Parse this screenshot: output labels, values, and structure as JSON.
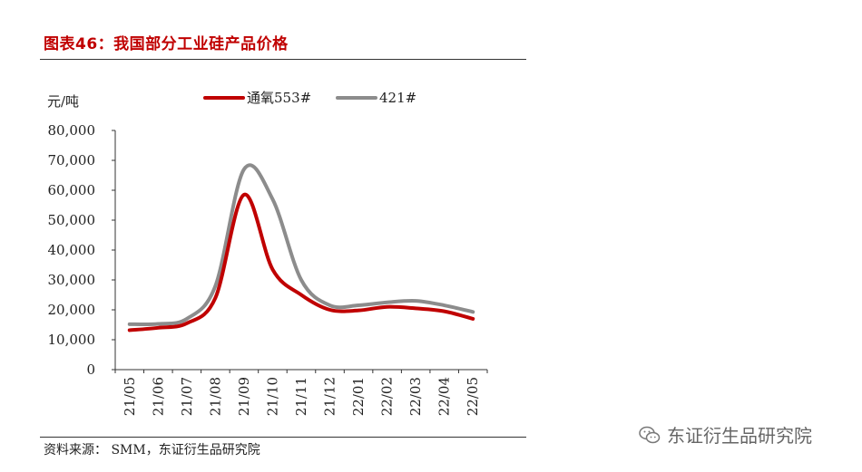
{
  "figure": {
    "title": "图表46：我国部分工业硅产品价格",
    "source": "资料来源： SMM，东证衍生品研究院"
  },
  "watermark": {
    "text": "东证衍生品研究院",
    "icon": "wechat-icon"
  },
  "chart_data": {
    "type": "line",
    "title": "",
    "xlabel": "",
    "ylabel": "元/吨",
    "categories": [
      "21/05",
      "21/06",
      "21/07",
      "21/08",
      "21/09",
      "21/10",
      "21/11",
      "21/12",
      "22/01",
      "22/02",
      "22/03",
      "22/04",
      "22/05"
    ],
    "yticks": [
      "0",
      "10,000",
      "20,000",
      "30,000",
      "40,000",
      "50,000",
      "60,000",
      "70,000",
      "80,000"
    ],
    "ylim": [
      0,
      80000
    ],
    "legend_position": "top",
    "series": [
      {
        "name": "通氧553#",
        "color": "#c00000",
        "values": [
          13200,
          14000,
          15500,
          24000,
          58500,
          33500,
          25000,
          20000,
          19800,
          21000,
          20500,
          19500,
          17000
        ]
      },
      {
        "name": "421#",
        "color": "#8c8c8c",
        "values": [
          15200,
          15300,
          17000,
          28000,
          67000,
          57000,
          30000,
          21500,
          21500,
          22500,
          23000,
          21500,
          19300
        ]
      }
    ]
  }
}
